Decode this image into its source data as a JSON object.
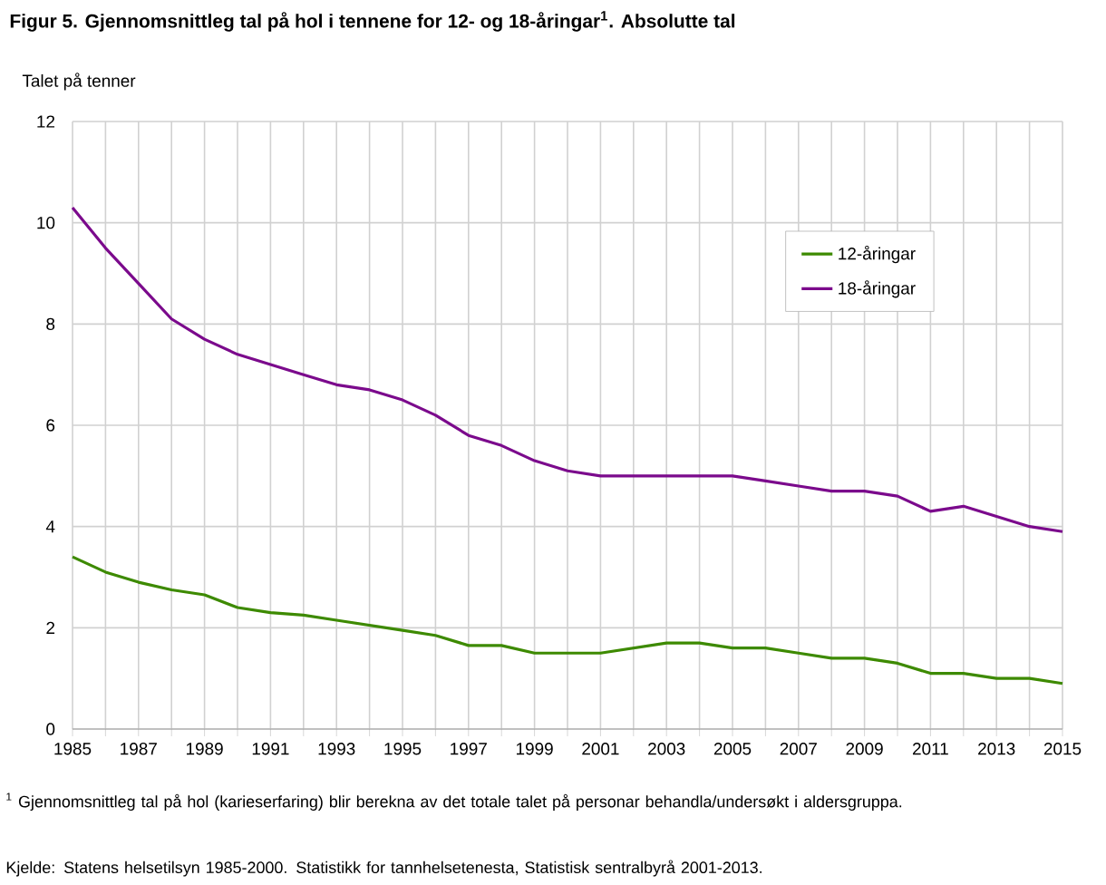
{
  "chart_data": {
    "type": "line",
    "title": "Figur 5. Gjennomsnittleg tal på hol i tennene for 12- og 18-åringar$^{1}$. Absolutte tal",
    "ylabel": "Talet på tenner",
    "x": [
      1985,
      1986,
      1987,
      1988,
      1989,
      1990,
      1991,
      1992,
      1993,
      1994,
      1995,
      1996,
      1997,
      1998,
      1999,
      2000,
      2001,
      2002,
      2003,
      2004,
      2005,
      2006,
      2007,
      2008,
      2009,
      2010,
      2011,
      2012,
      2013,
      2014,
      2015
    ],
    "series": [
      {
        "name": "12-åringar",
        "color": "#3d8a00",
        "values": [
          3.4,
          3.1,
          2.9,
          2.75,
          2.65,
          2.4,
          2.3,
          2.25,
          2.15,
          2.05,
          1.95,
          1.85,
          1.65,
          1.65,
          1.5,
          1.5,
          1.5,
          1.6,
          1.7,
          1.7,
          1.6,
          1.6,
          1.5,
          1.4,
          1.4,
          1.3,
          1.1,
          1.1,
          1.0,
          1.0,
          0.9
        ]
      },
      {
        "name": "18-åringar",
        "color": "#7b0a8c",
        "values": [
          10.3,
          9.5,
          8.8,
          8.1,
          7.7,
          7.4,
          7.2,
          7.0,
          6.8,
          6.7,
          6.5,
          6.2,
          5.8,
          5.6,
          5.3,
          5.1,
          5.0,
          5.0,
          5.0,
          5.0,
          5.0,
          4.9,
          4.8,
          4.7,
          4.7,
          4.6,
          4.3,
          4.4,
          4.2,
          4.0,
          3.9
        ]
      }
    ],
    "xlim": [
      1985,
      2015
    ],
    "xticks": [
      1985,
      {
        "value": 1986,
        "label": null
      },
      1987,
      {
        "value": 1988,
        "label": null
      },
      1989,
      {
        "value": 1990,
        "label": null
      },
      1991,
      {
        "value": 1992,
        "label": null
      },
      1993,
      {
        "value": 1994,
        "label": null
      },
      1995,
      {
        "value": 1996,
        "label": null
      },
      1997,
      {
        "value": 1998,
        "label": null
      },
      1999,
      {
        "value": 2000,
        "label": null
      },
      2001,
      {
        "value": 2002,
        "label": null
      },
      2003,
      {
        "value": 2004,
        "label": null
      },
      2005,
      {
        "value": 2006,
        "label": null
      },
      2007,
      {
        "value": 2008,
        "label": null
      },
      2009,
      {
        "value": 2010,
        "label": null
      },
      2011,
      {
        "value": 2012,
        "label": null
      },
      2013,
      {
        "value": 2014,
        "label": null
      },
      2015
    ],
    "ylim": [
      0,
      12
    ],
    "yticks": [
      0,
      2,
      4,
      6,
      8,
      10,
      12
    ],
    "grid": true,
    "legend": "top right",
    "marker": "none",
    "line_style": "solid",
    "annotations": [
      "$^{1}$ Gjennomsnittleg tal på hol (karieserfaring) blir berekna av det totale talet på personar behandla/undersøkt i aldersgruppa.",
      "Kjelde: Statens helsetilsyn 1985-2000. Statistikk for tannhelsetenesta, Statistisk sentralbyrå 2001-2013."
    ]
  }
}
